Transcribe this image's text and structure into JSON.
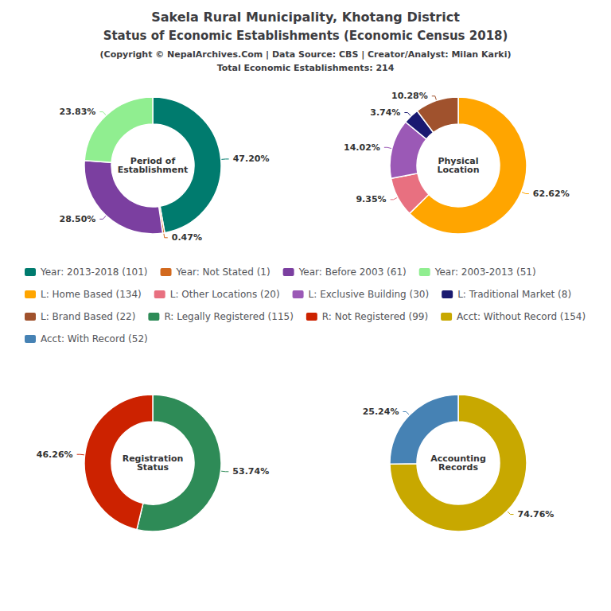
{
  "title": [
    "Sakela Rural Municipality, Khotang District",
    "Status of Economic Establishments (Economic Census 2018)"
  ],
  "subtitle": [
    "(Copyright © NepalArchives.Com | Data Source: CBS | Creator/Analyst: Milan Karki)",
    "Total Economic Establishments: 214"
  ],
  "legend": "center",
  "chart_data": [
    {
      "type": "pie",
      "title": "Period of\nEstablishment",
      "categories": [
        "Year: 2013-2018 (101)",
        "Year: Not Stated (1)",
        "Year: Before 2003 (61)",
        "Year: 2003-2013 (51)"
      ],
      "values": [
        47.2,
        0.47,
        28.5,
        23.83
      ],
      "colors": [
        "#007b6e",
        "#d2691e",
        "#7b3fa0",
        "#90ee90"
      ],
      "value_labels": [
        "47.20%",
        "0.47%",
        "28.50%",
        "23.83%"
      ],
      "data_labels": true
    },
    {
      "type": "pie",
      "title": "Physical\nLocation",
      "categories": [
        "L: Home Based (134)",
        "L: Other Locations (20)",
        "L: Exclusive Building (30)",
        "L: Traditional Market (8)",
        "L: Brand Based (22)"
      ],
      "values": [
        62.62,
        9.35,
        14.02,
        3.74,
        10.28
      ],
      "colors": [
        "#ffa500",
        "#e87080",
        "#9b59b6",
        "#191970",
        "#a0522d"
      ],
      "value_labels": [
        "62.62%",
        "9.35%",
        "14.02%",
        "3.74%",
        "10.28%"
      ],
      "data_labels": true
    },
    {
      "type": "pie",
      "title": "Registration\nStatus",
      "categories": [
        "R: Legally Registered (115)",
        "R: Not Registered (99)"
      ],
      "values": [
        53.74,
        46.26
      ],
      "colors": [
        "#2e8b57",
        "#cc2200"
      ],
      "value_labels": [
        "53.74%",
        "46.26%"
      ],
      "data_labels": true
    },
    {
      "type": "pie",
      "title": "Accounting\nRecords",
      "categories": [
        "Acct: Without Record (154)",
        "Acct: With Record (52)"
      ],
      "values": [
        74.76,
        25.24
      ],
      "colors": [
        "#c8a800",
        "#4682b4"
      ],
      "value_labels": [
        "74.76%",
        "25.24%"
      ],
      "data_labels": true
    }
  ]
}
